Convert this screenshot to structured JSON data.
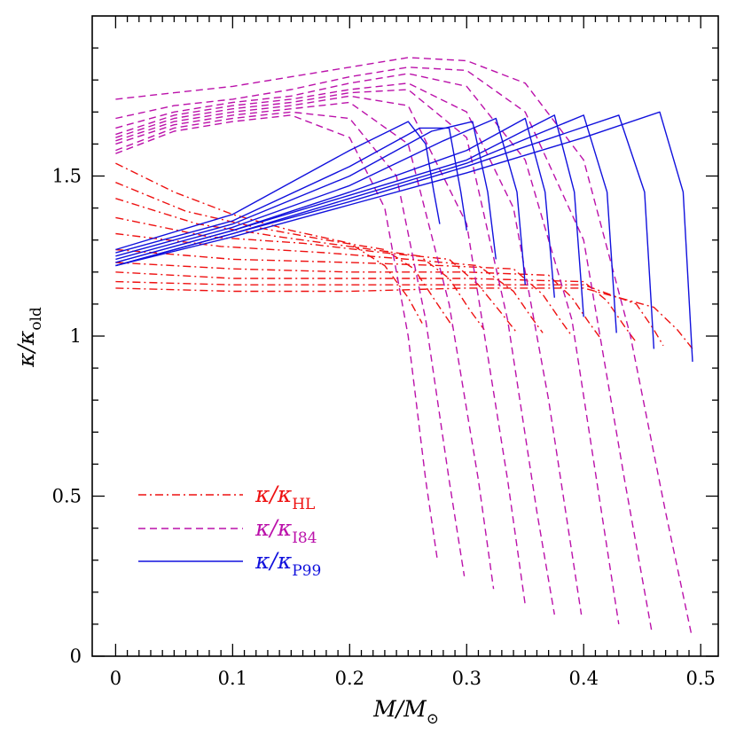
{
  "chart_data": {
    "type": "line",
    "xlabel": {
      "main": "M/M",
      "sub": "⊙"
    },
    "ylabel": {
      "main": "κ/κ",
      "sub": "old"
    },
    "xlim": [
      -0.02,
      0.515
    ],
    "ylim": [
      0,
      2.0
    ],
    "xticks": [
      0,
      0.1,
      0.2,
      0.3,
      0.4,
      0.5
    ],
    "xtick_labels": [
      "0",
      "0.1",
      "0.2",
      "0.3",
      "0.4",
      "0.5"
    ],
    "yticks": [
      0,
      0.5,
      1,
      1.5
    ],
    "ytick_labels": [
      "0",
      "0.5",
      "1",
      "1.5"
    ],
    "grid": false,
    "legend": {
      "position": "bottom-left",
      "items": [
        {
          "main": "κ/κ",
          "sub": "HL",
          "color": "#ee1111",
          "dash": "dashdot"
        },
        {
          "main": "κ/κ",
          "sub": "I84",
          "color": "#bb11aa",
          "dash": "dashed"
        },
        {
          "main": "κ/κ",
          "sub": "P99",
          "color": "#1111dd",
          "dash": "solid"
        }
      ]
    },
    "groups": [
      {
        "family": "HL",
        "color": "#ee1111",
        "dash": "dashdot",
        "series": [
          {
            "x": [
              0,
              0.05,
              0.1,
              0.15,
              0.2,
              0.23,
              0.25,
              0.262
            ],
            "y": [
              1.54,
              1.45,
              1.38,
              1.33,
              1.29,
              1.22,
              1.12,
              1.04
            ]
          },
          {
            "x": [
              0,
              0.06,
              0.12,
              0.18,
              0.23,
              0.255,
              0.275,
              0.288
            ],
            "y": [
              1.48,
              1.39,
              1.34,
              1.3,
              1.27,
              1.21,
              1.1,
              1.03
            ]
          },
          {
            "x": [
              0,
              0.07,
              0.14,
              0.2,
              0.26,
              0.285,
              0.303,
              0.315
            ],
            "y": [
              1.43,
              1.35,
              1.31,
              1.28,
              1.25,
              1.18,
              1.08,
              1.02
            ]
          },
          {
            "x": [
              0,
              0.08,
              0.16,
              0.23,
              0.285,
              0.31,
              0.33,
              0.343
            ],
            "y": [
              1.37,
              1.31,
              1.29,
              1.26,
              1.24,
              1.16,
              1.07,
              1.01
            ]
          },
          {
            "x": [
              0,
              0.09,
              0.18,
              0.25,
              0.31,
              0.34,
              0.355,
              0.365
            ],
            "y": [
              1.32,
              1.28,
              1.26,
              1.24,
              1.22,
              1.14,
              1.06,
              1.01
            ]
          },
          {
            "x": [
              0,
              0.1,
              0.2,
              0.28,
              0.34,
              0.365,
              0.38,
              0.39
            ],
            "y": [
              1.27,
              1.24,
              1.23,
              1.22,
              1.21,
              1.13,
              1.05,
              1.0
            ]
          },
          {
            "x": [
              0,
              0.1,
              0.2,
              0.3,
              0.37,
              0.39,
              0.405,
              0.415
            ],
            "y": [
              1.23,
              1.21,
              1.2,
              1.2,
              1.19,
              1.12,
              1.04,
              0.99
            ]
          },
          {
            "x": [
              0,
              0.1,
              0.2,
              0.3,
              0.4,
              0.42,
              0.435,
              0.445
            ],
            "y": [
              1.2,
              1.18,
              1.18,
              1.18,
              1.17,
              1.11,
              1.03,
              0.98
            ]
          },
          {
            "x": [
              0,
              0.1,
              0.2,
              0.3,
              0.4,
              0.445,
              0.46,
              0.468
            ],
            "y": [
              1.17,
              1.16,
              1.16,
              1.16,
              1.16,
              1.1,
              1.02,
              0.97
            ]
          },
          {
            "x": [
              0,
              0.1,
              0.2,
              0.3,
              0.4,
              0.46,
              0.48,
              0.493
            ],
            "y": [
              1.15,
              1.14,
              1.14,
              1.15,
              1.15,
              1.09,
              1.02,
              0.96
            ]
          }
        ]
      },
      {
        "family": "I84",
        "color": "#bb11aa",
        "dash": "dashed",
        "series": [
          {
            "x": [
              0,
              0.05,
              0.1,
              0.15,
              0.2,
              0.23,
              0.25,
              0.265,
              0.275
            ],
            "y": [
              1.57,
              1.64,
              1.67,
              1.69,
              1.62,
              1.4,
              1.0,
              0.55,
              0.3
            ]
          },
          {
            "x": [
              0,
              0.05,
              0.1,
              0.15,
              0.2,
              0.24,
              0.265,
              0.285,
              0.298
            ],
            "y": [
              1.58,
              1.65,
              1.68,
              1.7,
              1.68,
              1.5,
              1.05,
              0.55,
              0.25
            ]
          },
          {
            "x": [
              0,
              0.05,
              0.1,
              0.15,
              0.2,
              0.25,
              0.285,
              0.31,
              0.323
            ],
            "y": [
              1.6,
              1.66,
              1.69,
              1.71,
              1.73,
              1.6,
              1.1,
              0.55,
              0.21
            ]
          },
          {
            "x": [
              0,
              0.05,
              0.1,
              0.15,
              0.2,
              0.25,
              0.3,
              0.335,
              0.35
            ],
            "y": [
              1.61,
              1.67,
              1.7,
              1.72,
              1.75,
              1.72,
              1.35,
              0.55,
              0.16
            ]
          },
          {
            "x": [
              0,
              0.05,
              0.1,
              0.15,
              0.2,
              0.25,
              0.3,
              0.335,
              0.36,
              0.375
            ],
            "y": [
              1.62,
              1.68,
              1.71,
              1.73,
              1.76,
              1.77,
              1.62,
              1.05,
              0.45,
              0.13
            ]
          },
          {
            "x": [
              0,
              0.05,
              0.1,
              0.15,
              0.2,
              0.25,
              0.3,
              0.34,
              0.37,
              0.398
            ],
            "y": [
              1.63,
              1.69,
              1.72,
              1.74,
              1.77,
              1.79,
              1.7,
              1.4,
              0.8,
              0.13
            ]
          },
          {
            "x": [
              0,
              0.05,
              0.1,
              0.15,
              0.2,
              0.25,
              0.3,
              0.35,
              0.39,
              0.43
            ],
            "y": [
              1.65,
              1.7,
              1.73,
              1.75,
              1.79,
              1.82,
              1.78,
              1.55,
              1.05,
              0.1
            ]
          },
          {
            "x": [
              0,
              0.05,
              0.1,
              0.15,
              0.2,
              0.25,
              0.3,
              0.35,
              0.4,
              0.435,
              0.458
            ],
            "y": [
              1.68,
              1.72,
              1.74,
              1.77,
              1.81,
              1.84,
              1.83,
              1.7,
              1.3,
              0.55,
              0.08
            ]
          },
          {
            "x": [
              0,
              0.05,
              0.1,
              0.15,
              0.2,
              0.25,
              0.3,
              0.35,
              0.4,
              0.44,
              0.47,
              0.492
            ],
            "y": [
              1.74,
              1.76,
              1.78,
              1.81,
              1.84,
              1.87,
              1.86,
              1.79,
              1.55,
              1.0,
              0.45,
              0.07
            ]
          }
        ]
      },
      {
        "family": "P99",
        "color": "#1111dd",
        "dash": "solid",
        "series": [
          {
            "x": [
              0,
              0.1,
              0.2,
              0.25,
              0.265,
              0.272,
              0.277
            ],
            "y": [
              1.27,
              1.38,
              1.58,
              1.67,
              1.6,
              1.45,
              1.35
            ]
          },
          {
            "x": [
              0,
              0.1,
              0.2,
              0.26,
              0.285,
              0.295,
              0.3
            ],
            "y": [
              1.26,
              1.36,
              1.53,
              1.65,
              1.65,
              1.45,
              1.33
            ]
          },
          {
            "x": [
              0,
              0.1,
              0.2,
              0.27,
              0.305,
              0.318,
              0.325
            ],
            "y": [
              1.25,
              1.35,
              1.5,
              1.64,
              1.67,
              1.45,
              1.24
            ]
          },
          {
            "x": [
              0,
              0.1,
              0.2,
              0.28,
              0.325,
              0.343,
              0.35
            ],
            "y": [
              1.24,
              1.34,
              1.47,
              1.61,
              1.68,
              1.45,
              1.16
            ]
          },
          {
            "x": [
              0,
              0.1,
              0.2,
              0.3,
              0.35,
              0.367,
              0.375
            ],
            "y": [
              1.23,
              1.33,
              1.45,
              1.58,
              1.68,
              1.45,
              1.12
            ]
          },
          {
            "x": [
              0,
              0.1,
              0.2,
              0.3,
              0.375,
              0.392,
              0.4
            ],
            "y": [
              1.23,
              1.33,
              1.44,
              1.55,
              1.69,
              1.45,
              1.06
            ]
          },
          {
            "x": [
              0,
              0.1,
              0.2,
              0.3,
              0.4,
              0.42,
              0.428
            ],
            "y": [
              1.22,
              1.32,
              1.43,
              1.54,
              1.69,
              1.45,
              1.01
            ]
          },
          {
            "x": [
              0,
              0.1,
              0.2,
              0.3,
              0.43,
              0.452,
              0.46
            ],
            "y": [
              1.22,
              1.32,
              1.42,
              1.53,
              1.69,
              1.45,
              0.96
            ]
          },
          {
            "x": [
              0,
              0.1,
              0.2,
              0.3,
              0.4,
              0.465,
              0.485,
              0.493
            ],
            "y": [
              1.22,
              1.31,
              1.41,
              1.51,
              1.62,
              1.7,
              1.45,
              0.92
            ]
          }
        ]
      }
    ]
  }
}
